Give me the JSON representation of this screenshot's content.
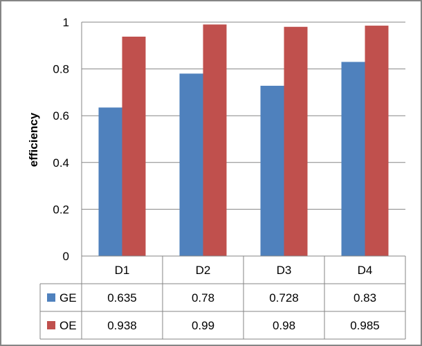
{
  "chart_data": {
    "type": "bar",
    "title": "",
    "xlabel": "",
    "ylabel": "efficiency",
    "ylim": [
      0,
      1
    ],
    "yticks": [
      0,
      0.2,
      0.4,
      0.6,
      0.8,
      1
    ],
    "ytick_labels": [
      "0",
      "0.2",
      "0.4",
      "0.6",
      "0.8",
      "1"
    ],
    "grid": true,
    "legend": "data-table",
    "categories": [
      "D1",
      "D2",
      "D3",
      "D4"
    ],
    "series": [
      {
        "name": "GE",
        "color": "#4f81bd",
        "values": [
          0.635,
          0.78,
          0.728,
          0.83
        ],
        "labels": [
          "0.635",
          "0.78",
          "0.728",
          "0.83"
        ]
      },
      {
        "name": "OE",
        "color": "#c0504d",
        "values": [
          0.938,
          0.99,
          0.98,
          0.985
        ],
        "labels": [
          "0.938",
          "0.99",
          "0.98",
          "0.985"
        ]
      }
    ]
  },
  "colors": {
    "border": "#858585",
    "grid": "#868686",
    "text": "#000000"
  }
}
